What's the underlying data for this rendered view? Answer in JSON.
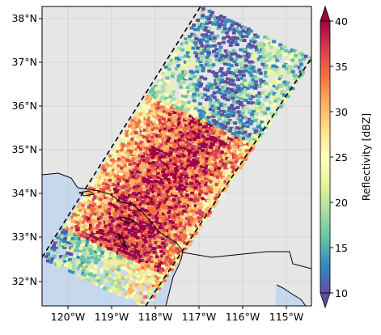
{
  "map": {
    "lon_range": [
      -120.4,
      -114.3
    ],
    "lat_range": [
      31.5,
      38.3
    ],
    "lat_ticks": [
      "38°N",
      "37°N",
      "36°N",
      "35°N",
      "34°N",
      "33°N",
      "32°N"
    ],
    "lon_ticks": [
      "120°W",
      "119°W",
      "118°W",
      "117°W",
      "116°W",
      "115°W"
    ],
    "background_color": "#e6e6e6",
    "ocean_color": "#c6d8ee",
    "gridlines": true
  },
  "colorbar": {
    "label": "Reflectivity [dBZ]",
    "range": [
      10,
      40
    ],
    "ticks": [
      "10",
      "15",
      "20",
      "25",
      "30",
      "35",
      "40"
    ],
    "extend": "both",
    "colormap": "Spectral_r"
  },
  "swath": {
    "outline_style": "dashed black",
    "corners_approx": [
      [
        "-120.4",
        "32.6"
      ],
      [
        "-117.9",
        "31.5"
      ],
      [
        "-114.3",
        "37.1"
      ],
      [
        "-116.9",
        "38.3"
      ]
    ]
  }
}
